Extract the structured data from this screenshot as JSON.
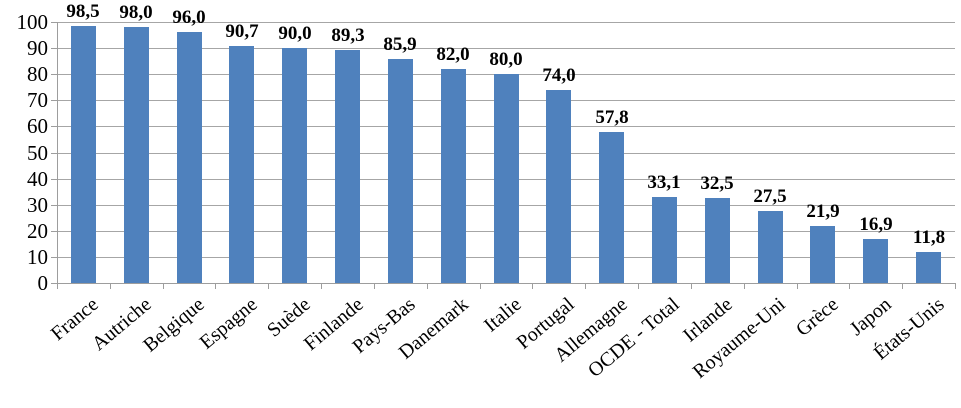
{
  "chart_data": {
    "type": "bar",
    "title": "",
    "xlabel": "",
    "ylabel": "",
    "categories": [
      "France",
      "Autriche",
      "Belgique",
      "Espagne",
      "Suède",
      "Finlande",
      "Pays-Bas",
      "Danemark",
      "Italie",
      "Portugal",
      "Allemagne",
      "OCDE - Total",
      "Irlande",
      "Royaume-Uni",
      "Grèce",
      "Japon",
      "États-Unis"
    ],
    "values": [
      98.5,
      98.0,
      96.0,
      90.7,
      90.0,
      89.3,
      85.9,
      82.0,
      80.0,
      74.0,
      57.8,
      33.1,
      32.5,
      27.5,
      21.9,
      16.9,
      11.8
    ],
    "value_labels": [
      "98,5",
      "98,0",
      "96,0",
      "90,7",
      "90,0",
      "89,3",
      "85,9",
      "82,0",
      "80,0",
      "74,0",
      "57,8",
      "33,1",
      "32,5",
      "27,5",
      "21,9",
      "16,9",
      "11,8"
    ],
    "ylim": [
      0,
      100
    ],
    "ytick_interval": 10,
    "ytick_labels": [
      "0",
      "10",
      "20",
      "30",
      "40",
      "50",
      "60",
      "70",
      "80",
      "90",
      "100"
    ],
    "grid": true,
    "legend": false,
    "category_label_rotation_deg": -40,
    "colors": {
      "bar_fill": "#4f81bd",
      "gridline": "#a6a6a6",
      "axis": "#9d9d9d",
      "text": "#000000",
      "background": "#ffffff"
    }
  }
}
